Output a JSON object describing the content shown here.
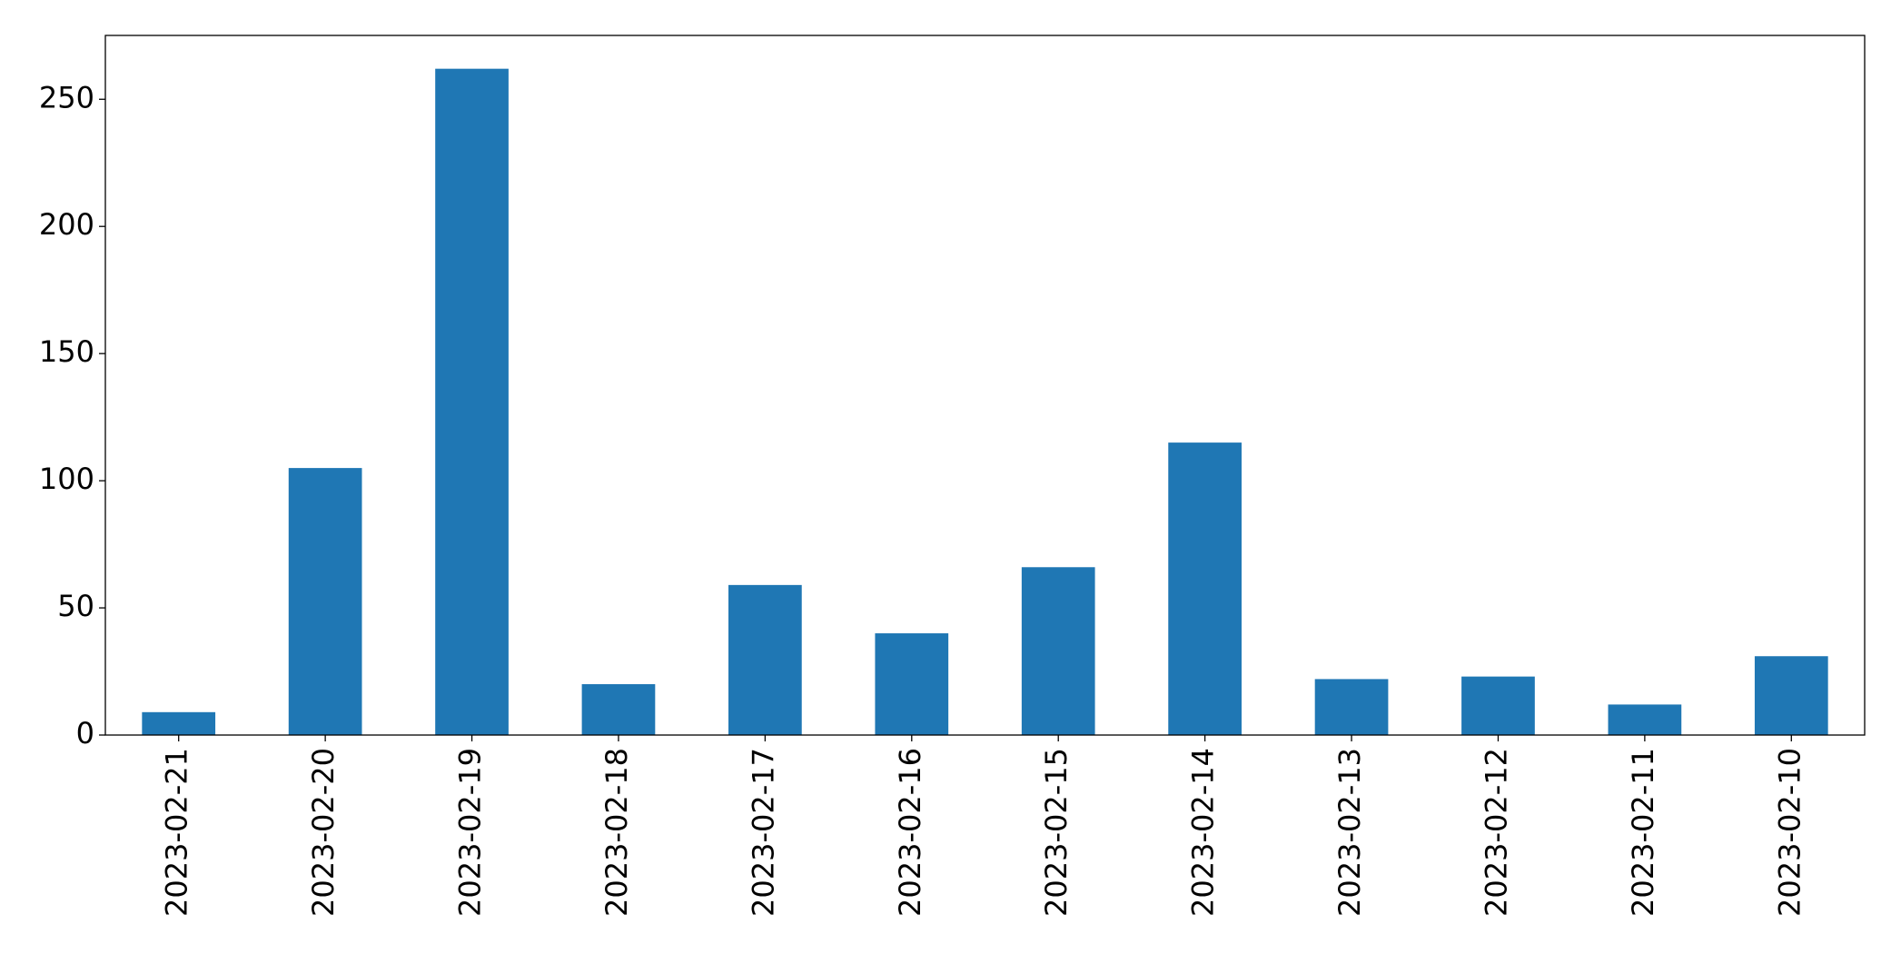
{
  "chart_data": {
    "type": "bar",
    "categories": [
      "2023-02-21",
      "2023-02-20",
      "2023-02-19",
      "2023-02-18",
      "2023-02-17",
      "2023-02-16",
      "2023-02-15",
      "2023-02-14",
      "2023-02-13",
      "2023-02-12",
      "2023-02-11",
      "2023-02-10"
    ],
    "values": [
      9,
      105,
      262,
      20,
      59,
      40,
      66,
      115,
      22,
      23,
      12,
      31
    ],
    "color": "#1f77b4",
    "ylim": [
      0,
      275.1
    ],
    "yticks": [
      0,
      50,
      100,
      150,
      200,
      250
    ],
    "grid": false
  }
}
